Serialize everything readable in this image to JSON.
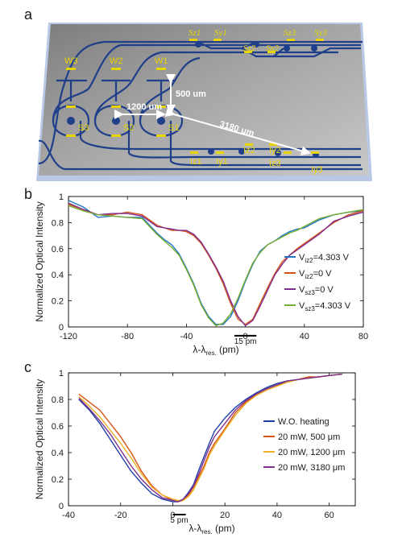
{
  "panel_a": {
    "label": "a",
    "labels_top": [
      "Sz1",
      "Sy1",
      "Sz2",
      "Sy2",
      "Sz3",
      "Sy3"
    ],
    "labels_bottom": [
      "Iz1",
      "Iy1",
      "Iz2",
      "Iy2",
      "Iz3",
      "Iy3"
    ],
    "heaters": [
      "W3",
      "W2",
      "W1"
    ],
    "sources": [
      "S3",
      "S2",
      "S1"
    ],
    "dimensions": [
      "500 um",
      "1200 um",
      "3180 um"
    ],
    "colors": {
      "waveguide": "#1f3f8a",
      "label": "#e8d400",
      "chip": "#9b9b9b",
      "arrow": "#ffffff"
    }
  },
  "chart_data": [
    {
      "panel": "b",
      "type": "line",
      "title": "",
      "xlabel_main": "λ-λ",
      "xlabel_sub": "res.",
      "xlabel_unit": " (pm)",
      "ylabel": "Normalized Optical Intensity",
      "xlim": [
        -120,
        80
      ],
      "ylim": [
        0,
        1
      ],
      "xticks": [
        -120,
        -80,
        -40,
        0,
        40,
        80
      ],
      "yticks": [
        0,
        0.2,
        0.4,
        0.6,
        0.8,
        1
      ],
      "scalebar": {
        "label": "15 pm",
        "x_start": -7.5,
        "x_end": 7.5,
        "y": -0.03
      },
      "legend_position": "right",
      "series": [
        {
          "name_main": "V",
          "name_sub": "iz2",
          "name_val": "=4.303 V",
          "color": "#1f77c4",
          "x": [
            -120,
            -110,
            -100,
            -90,
            -80,
            -70,
            -60,
            -55,
            -50,
            -45,
            -40,
            -35,
            -30,
            -25,
            -20,
            -15,
            -10,
            -5,
            0,
            5,
            10,
            15,
            20,
            25,
            30,
            35,
            40,
            50,
            60,
            70,
            80
          ],
          "y": [
            0.97,
            0.92,
            0.84,
            0.85,
            0.84,
            0.84,
            0.72,
            0.67,
            0.63,
            0.56,
            0.45,
            0.33,
            0.18,
            0.08,
            0.02,
            0.02,
            0.08,
            0.2,
            0.35,
            0.48,
            0.58,
            0.63,
            0.66,
            0.7,
            0.73,
            0.75,
            0.76,
            0.82,
            0.86,
            0.88,
            0.89
          ]
        },
        {
          "name_main": "V",
          "name_sub": "iz2",
          "name_val": "=0 V",
          "color": "#d95319",
          "x": [
            -120,
            -110,
            -100,
            -90,
            -80,
            -70,
            -60,
            -55,
            -50,
            -45,
            -40,
            -35,
            -30,
            -25,
            -20,
            -15,
            -10,
            -5,
            0,
            5,
            10,
            15,
            20,
            25,
            30,
            35,
            40,
            50,
            60,
            70,
            80
          ],
          "y": [
            0.94,
            0.9,
            0.86,
            0.86,
            0.88,
            0.86,
            0.78,
            0.76,
            0.74,
            0.74,
            0.73,
            0.7,
            0.64,
            0.55,
            0.45,
            0.33,
            0.18,
            0.06,
            0.02,
            0.06,
            0.18,
            0.3,
            0.41,
            0.5,
            0.55,
            0.6,
            0.64,
            0.72,
            0.8,
            0.86,
            0.89
          ]
        },
        {
          "name_main": "V",
          "name_sub": "sz3",
          "name_val": "=0 V",
          "color": "#7e2f8e",
          "x": [
            -120,
            -110,
            -100,
            -90,
            -80,
            -70,
            -60,
            -55,
            -50,
            -45,
            -40,
            -35,
            -30,
            -25,
            -20,
            -15,
            -10,
            -5,
            0,
            5,
            10,
            15,
            20,
            25,
            30,
            35,
            40,
            50,
            60,
            70,
            80
          ],
          "y": [
            0.95,
            0.9,
            0.86,
            0.87,
            0.87,
            0.85,
            0.77,
            0.76,
            0.75,
            0.74,
            0.74,
            0.71,
            0.65,
            0.56,
            0.46,
            0.35,
            0.2,
            0.08,
            0.01,
            0.05,
            0.16,
            0.28,
            0.4,
            0.48,
            0.55,
            0.59,
            0.63,
            0.71,
            0.81,
            0.85,
            0.88
          ]
        },
        {
          "name_main": "V",
          "name_sub": "sz3",
          "name_val": "=4.303 V",
          "color": "#77ac30",
          "x": [
            -120,
            -110,
            -100,
            -90,
            -80,
            -70,
            -60,
            -55,
            -50,
            -45,
            -40,
            -35,
            -30,
            -25,
            -20,
            -15,
            -10,
            -5,
            0,
            5,
            10,
            15,
            20,
            25,
            30,
            35,
            40,
            50,
            60,
            70,
            80
          ],
          "y": [
            0.93,
            0.89,
            0.86,
            0.85,
            0.84,
            0.83,
            0.71,
            0.66,
            0.61,
            0.55,
            0.44,
            0.32,
            0.17,
            0.07,
            0.01,
            0.03,
            0.1,
            0.22,
            0.36,
            0.49,
            0.57,
            0.63,
            0.66,
            0.69,
            0.72,
            0.74,
            0.77,
            0.83,
            0.86,
            0.88,
            0.9
          ]
        }
      ]
    },
    {
      "panel": "c",
      "type": "line",
      "title": "",
      "xlabel_main": "λ-λ",
      "xlabel_sub": "res.",
      "xlabel_unit": " (pm)",
      "ylabel": "Normalized Optical Intensity",
      "xlim": [
        -40,
        70
      ],
      "ylim": [
        0,
        1
      ],
      "xticks": [
        -40,
        -20,
        0,
        20,
        40,
        60
      ],
      "yticks": [
        0,
        0.2,
        0.4,
        0.6,
        0.8,
        1
      ],
      "scalebar": {
        "label": "5 pm",
        "x_start": 0,
        "x_end": 5,
        "y": -0.03
      },
      "legend_position": "right",
      "series": [
        {
          "name": "W.O. heating",
          "color": "#1f3fa8",
          "x": [
            -36,
            -32,
            -28,
            -24,
            -20,
            -16,
            -12,
            -8,
            -4,
            0,
            2,
            4,
            6,
            8,
            10,
            12,
            14,
            16,
            20,
            24,
            28,
            32,
            36,
            40,
            44,
            48,
            52,
            56,
            60,
            65
          ],
          "y": [
            0.8,
            0.72,
            0.62,
            0.5,
            0.38,
            0.26,
            0.17,
            0.09,
            0.05,
            0.03,
            0.03,
            0.05,
            0.1,
            0.16,
            0.27,
            0.37,
            0.47,
            0.56,
            0.66,
            0.74,
            0.8,
            0.85,
            0.89,
            0.92,
            0.94,
            0.95,
            0.96,
            0.97,
            0.98,
            0.99
          ]
        },
        {
          "name": "20 mW, 500 μm",
          "color": "#d95319",
          "x": [
            -36,
            -32,
            -28,
            -24,
            -20,
            -16,
            -12,
            -8,
            -4,
            0,
            2,
            4,
            6,
            8,
            10,
            12,
            14,
            16,
            20,
            24,
            28,
            32,
            36,
            40,
            44,
            48,
            52,
            56,
            60,
            65
          ],
          "y": [
            0.84,
            0.78,
            0.72,
            0.62,
            0.52,
            0.4,
            0.26,
            0.15,
            0.08,
            0.04,
            0.03,
            0.04,
            0.08,
            0.14,
            0.22,
            0.3,
            0.4,
            0.47,
            0.58,
            0.7,
            0.78,
            0.84,
            0.88,
            0.91,
            0.93,
            0.95,
            0.97,
            0.97,
            0.98,
            0.99
          ]
        },
        {
          "name": "20 mW, 1200 μm",
          "color": "#edb120",
          "x": [
            -36,
            -32,
            -28,
            -24,
            -20,
            -16,
            -12,
            -8,
            -4,
            0,
            2,
            4,
            6,
            8,
            10,
            12,
            14,
            16,
            20,
            24,
            28,
            32,
            36,
            40,
            44,
            48,
            52,
            56,
            60,
            65
          ],
          "y": [
            0.82,
            0.75,
            0.67,
            0.57,
            0.47,
            0.36,
            0.24,
            0.14,
            0.08,
            0.05,
            0.04,
            0.04,
            0.07,
            0.12,
            0.2,
            0.28,
            0.38,
            0.45,
            0.57,
            0.68,
            0.77,
            0.83,
            0.87,
            0.9,
            0.93,
            0.95,
            0.96,
            0.97,
            0.98,
            0.99
          ]
        },
        {
          "name": "20 mW, 3180 μm",
          "color": "#7e2f8e",
          "x": [
            -36,
            -32,
            -28,
            -24,
            -20,
            -16,
            -12,
            -8,
            -4,
            0,
            2,
            4,
            6,
            8,
            10,
            12,
            14,
            16,
            20,
            24,
            28,
            32,
            36,
            40,
            44,
            48,
            52,
            56,
            60,
            65
          ],
          "y": [
            0.81,
            0.73,
            0.64,
            0.54,
            0.42,
            0.3,
            0.2,
            0.12,
            0.06,
            0.04,
            0.03,
            0.05,
            0.09,
            0.15,
            0.24,
            0.34,
            0.44,
            0.52,
            0.62,
            0.72,
            0.79,
            0.84,
            0.88,
            0.91,
            0.94,
            0.95,
            0.96,
            0.97,
            0.98,
            0.99
          ]
        }
      ]
    }
  ]
}
